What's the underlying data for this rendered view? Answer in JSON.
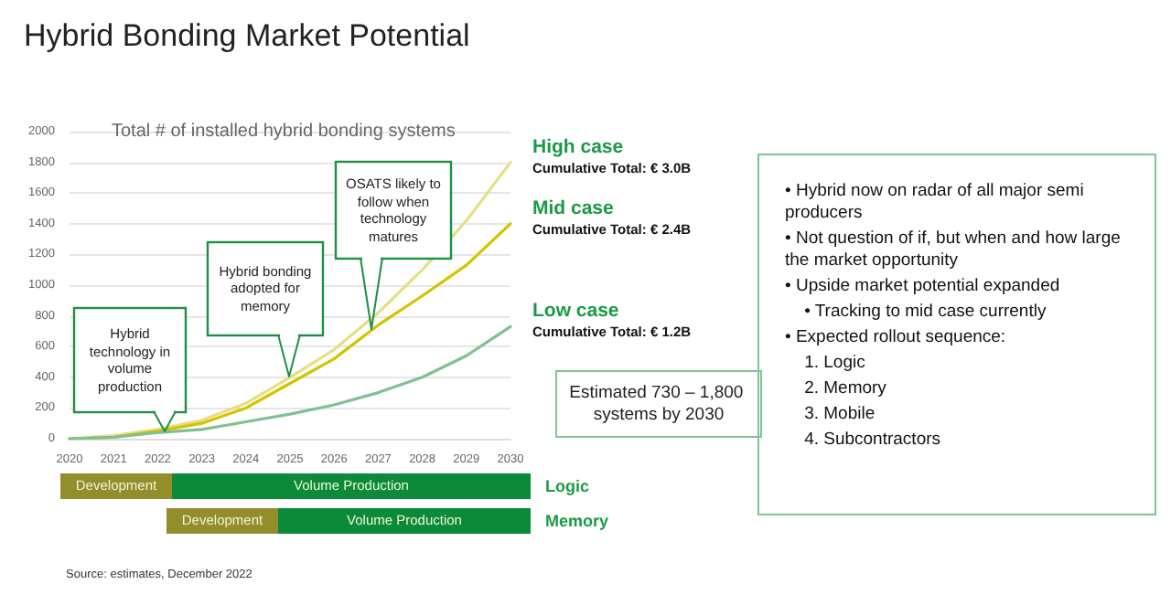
{
  "chart_data": [
    {
      "type": "line",
      "title": "Hybrid Bonding Market Potential",
      "subtitle": "Total # of installed hybrid bonding systems",
      "categories": [
        "2020",
        "2021",
        "2022",
        "2023",
        "2024",
        "2025",
        "2026",
        "2027",
        "2028",
        "2029",
        "2030"
      ],
      "series": [
        {
          "name": "High case",
          "color": "#e6df86",
          "values": [
            0,
            20,
            60,
            120,
            230,
            400,
            580,
            820,
            1100,
            1420,
            1800
          ]
        },
        {
          "name": "Mid case",
          "color": "#d4c400",
          "values": [
            0,
            10,
            50,
            100,
            200,
            360,
            520,
            740,
            930,
            1130,
            1400
          ]
        },
        {
          "name": "Low case",
          "color": "#80c091",
          "values": [
            0,
            10,
            40,
            60,
            110,
            160,
            220,
            300,
            400,
            540,
            730
          ]
        }
      ],
      "ylim": [
        0,
        2000
      ],
      "yticks": [
        0,
        200,
        400,
        600,
        800,
        1000,
        1200,
        1400,
        1600,
        1800,
        2000
      ],
      "grid": "y",
      "legend": false,
      "marker": "none",
      "line_style": "solid",
      "annotations": [
        "Hybrid technology in volume production",
        "Hybrid bonding adopted for memory",
        "OSATS likely to follow when technology matures",
        {
          "text": "Cumulative Total: € 3.0B",
          "x": "2030",
          "y": 1800
        },
        {
          "text": "Cumulative Total: € 2.4B",
          "x": "2030",
          "y": 1400
        },
        {
          "text": "Cumulative Total: € 1.2B",
          "x": "2030",
          "y": 730
        },
        "Estimated 730 – 1,800 systems by 2030"
      ]
    },
    {
      "type": "other",
      "annotations": [
        "Development",
        "Volume Production",
        "Logic",
        "Development",
        "Volume Production",
        "Memory",
        "Source: estimates, December 2022"
      ]
    },
    {
      "type": "other",
      "annotations": [
        "• Hybrid now on radar of all major semi producers",
        "• Not question of if, but when and how large the market opportunity",
        "• Upside market potential expanded",
        "    • Tracking to mid case currently",
        "• Expected rollout sequence:",
        "    1. Logic",
        "    2. Memory",
        "    3. Mobile",
        "    4. Subcontractors"
      ]
    }
  ]
}
